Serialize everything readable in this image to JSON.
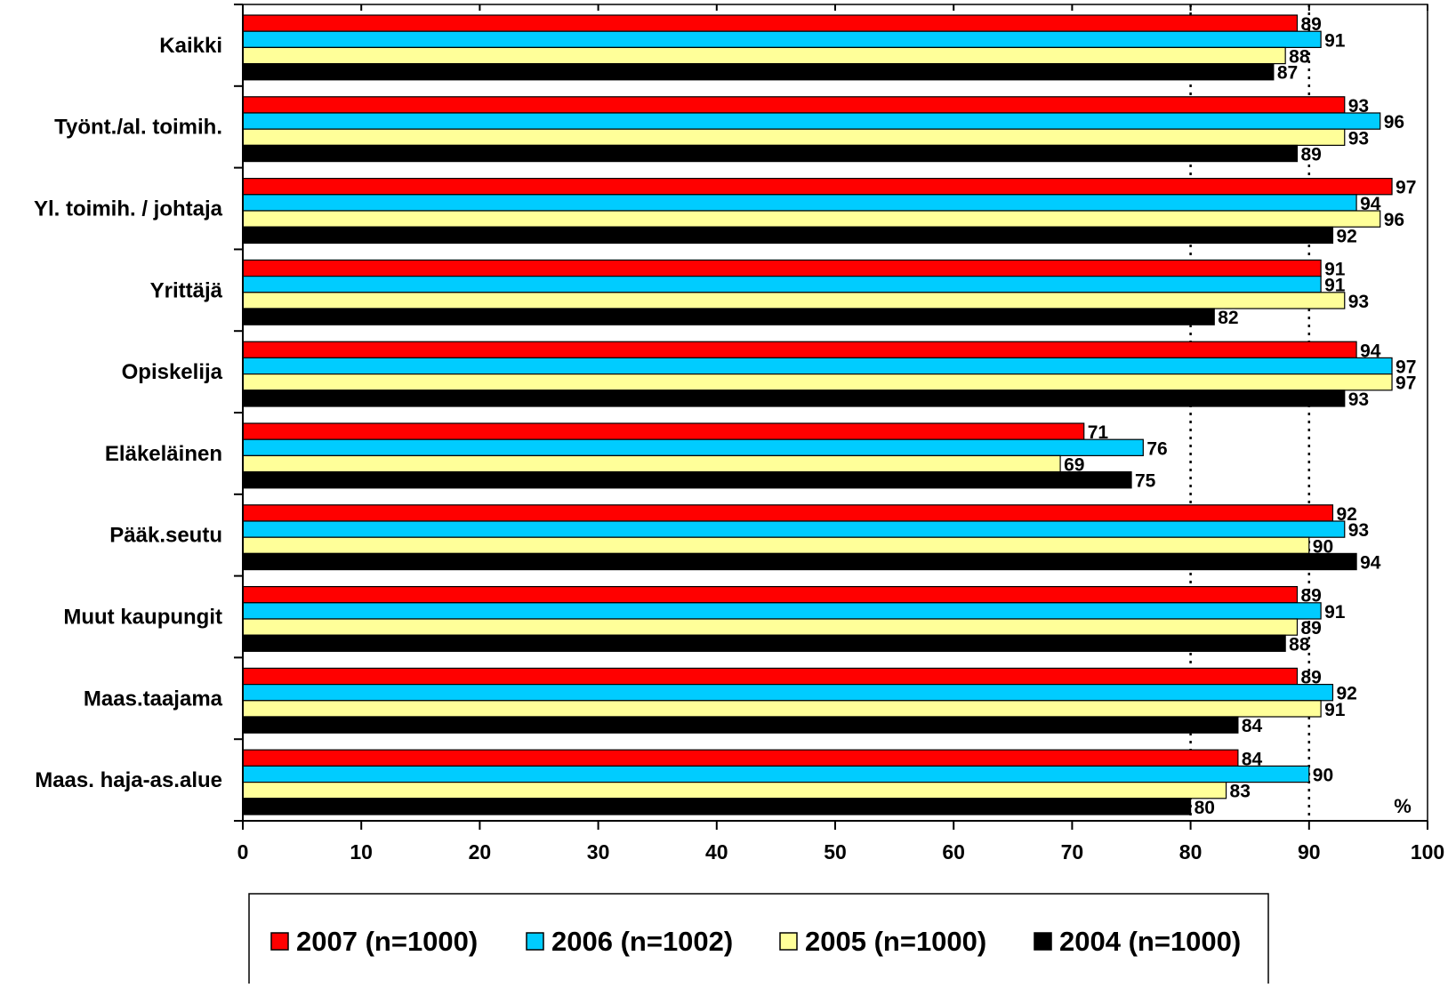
{
  "chart_data": {
    "type": "bar",
    "orientation": "horizontal",
    "categories": [
      "Kaikki",
      "Työnt./al. toimih.",
      "Yl. toimih. / johtaja",
      "Yrittäjä",
      "Opiskelija",
      "Eläkeläinen",
      "Pääk.seutu",
      "Muut kaupungit",
      "Maas.taajama",
      "Maas. haja-as.alue"
    ],
    "series": [
      {
        "name": "2007 (n=1000)",
        "color": "#ff0000",
        "values": [
          89,
          93,
          97,
          91,
          94,
          71,
          92,
          89,
          89,
          84
        ]
      },
      {
        "name": "2006 (n=1002)",
        "color": "#00ccff",
        "values": [
          91,
          96,
          94,
          91,
          97,
          76,
          93,
          91,
          92,
          90
        ]
      },
      {
        "name": "2005 (n=1000)",
        "color": "#ffff99",
        "values": [
          88,
          93,
          96,
          93,
          97,
          69,
          90,
          89,
          91,
          83
        ]
      },
      {
        "name": "2004 (n=1000)",
        "color": "#000000",
        "values": [
          87,
          89,
          92,
          82,
          93,
          75,
          94,
          88,
          84,
          80
        ]
      }
    ],
    "xlim": [
      0,
      100
    ],
    "xticks": [
      "0",
      "10",
      "20",
      "30",
      "40",
      "50",
      "60",
      "70",
      "80",
      "90",
      "100"
    ],
    "gridlines": [
      80,
      90
    ],
    "unit_label": "%",
    "legend_position": "bottom"
  }
}
